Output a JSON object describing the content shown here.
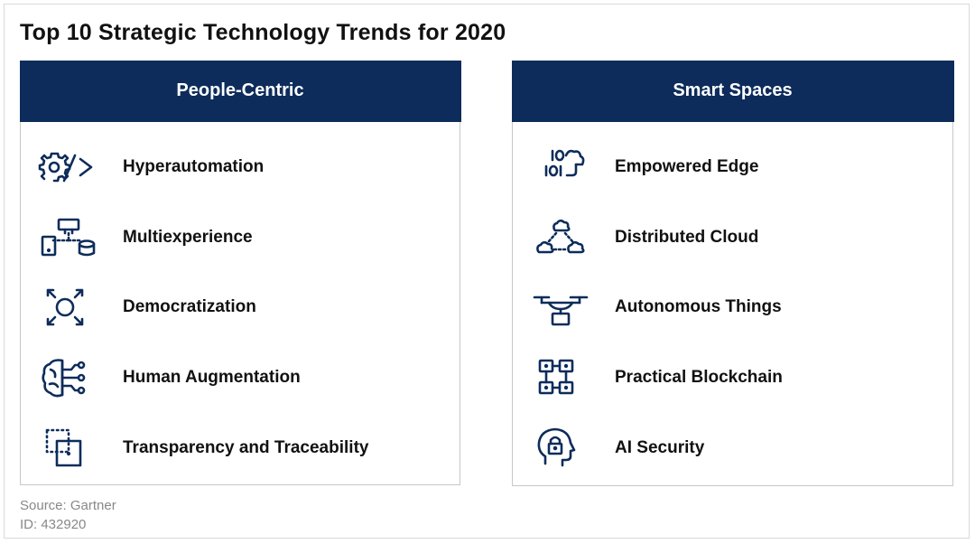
{
  "title": "Top 10 Strategic Technology Trends for 2020",
  "accent_color": "#0d2c5b",
  "left_panel": {
    "header": "People-Centric",
    "items": [
      {
        "label": "Hyperautomation",
        "icon": "gear-code-icon"
      },
      {
        "label": "Multiexperience",
        "icon": "devices-network-icon"
      },
      {
        "label": "Democratization",
        "icon": "expand-circle-icon"
      },
      {
        "label": "Human Augmentation",
        "icon": "brain-circuit-icon"
      },
      {
        "label": "Transparency and Traceability",
        "icon": "dotted-squares-icon"
      }
    ]
  },
  "right_panel": {
    "header": "Smart Spaces",
    "items": [
      {
        "label": "Empowered Edge",
        "icon": "binary-cloud-icon"
      },
      {
        "label": "Distributed Cloud",
        "icon": "cloud-triangle-icon"
      },
      {
        "label": "Autonomous Things",
        "icon": "drone-icon"
      },
      {
        "label": "Practical Blockchain",
        "icon": "blockchain-grid-icon"
      },
      {
        "label": "AI Security",
        "icon": "head-lock-icon"
      }
    ]
  },
  "footer": {
    "source": "Source: Gartner",
    "id": "ID: 432920"
  }
}
